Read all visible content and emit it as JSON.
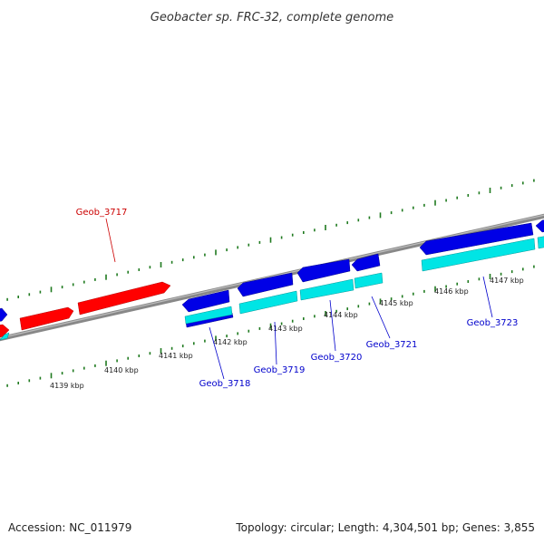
{
  "title": "Geobacter sp. FRC-32, complete genome",
  "footer": {
    "accession": "Accession: NC_011979",
    "summary": "Topology: circular; Length: 4,304,501 bp; Genes: 3,855"
  },
  "colors": {
    "backbone": "#8c8c8c",
    "ticks": "#1f7a1f",
    "forward_gene": "#ff0000",
    "reverse_gene": "#0000e6",
    "cds": "#00e5e5",
    "label_forward": "#cc0000",
    "label_reverse": "#0000cc"
  },
  "scale_labels": [
    "4139 kbp",
    "4140 kbp",
    "4141 kbp",
    "4142 kbp",
    "4143 kbp",
    "4144 kbp",
    "4145 kbp",
    "4146 kbp",
    "4147 kbp"
  ],
  "gene_labels": [
    {
      "id": "geob-3717",
      "text": "Geob_3717",
      "strand": "forward"
    },
    {
      "id": "geob-3718",
      "text": "Geob_3718",
      "strand": "reverse"
    },
    {
      "id": "geob-3719",
      "text": "Geob_3719",
      "strand": "reverse"
    },
    {
      "id": "geob-3720",
      "text": "Geob_3720",
      "strand": "reverse"
    },
    {
      "id": "geob-3721",
      "text": "Geob_3721",
      "strand": "reverse"
    },
    {
      "id": "geob-3723",
      "text": "Geob_3723",
      "strand": "reverse"
    }
  ]
}
